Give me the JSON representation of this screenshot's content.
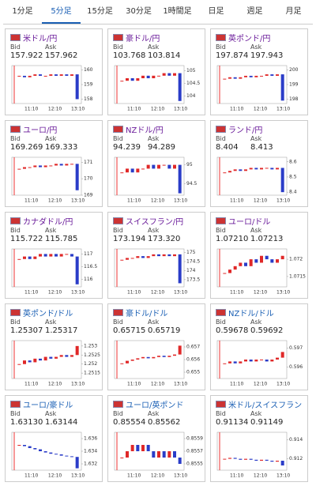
{
  "tabs": [
    "1分足",
    "5分足",
    "15分足",
    "30分足",
    "1時間足",
    "日足",
    "週足",
    "月足"
  ],
  "active_tab": 1,
  "bid_label": "Bid",
  "ask_label": "Ask",
  "xlabels": [
    "11:10",
    "12:10",
    "13:10"
  ],
  "panels": [
    {
      "name": "米ドル/円",
      "visited": true,
      "bid": "157.922",
      "ask": "157.962",
      "ylim": [
        157.7,
        160.3
      ],
      "yticks": [
        160,
        159,
        158
      ],
      "closes": [
        159.6,
        159.5,
        159.6,
        159.7,
        159.6,
        159.6,
        159.7,
        159.6,
        159.7,
        159.6,
        159.7,
        158.0
      ]
    },
    {
      "name": "豪ドル/円",
      "visited": true,
      "bid": "103.768",
      "ask": "103.814",
      "ylim": [
        103.7,
        105.2
      ],
      "yticks": [
        105,
        104.5,
        104
      ],
      "closes": [
        104.6,
        104.7,
        104.6,
        104.7,
        104.8,
        104.7,
        104.8,
        104.8,
        104.9,
        104.8,
        104.9,
        103.8
      ]
    },
    {
      "name": "英ポンド/円",
      "visited": true,
      "bid": "197.874",
      "ask": "197.943",
      "ylim": [
        197.7,
        200.3
      ],
      "yticks": [
        200,
        199,
        198
      ],
      "closes": [
        199.4,
        199.5,
        199.4,
        199.5,
        199.6,
        199.5,
        199.6,
        199.6,
        199.7,
        199.6,
        199.7,
        197.9
      ]
    },
    {
      "name": "ユーロ/円",
      "visited": true,
      "bid": "169.269",
      "ask": "169.333",
      "ylim": [
        169.0,
        171.3
      ],
      "yticks": [
        171,
        170,
        169
      ],
      "closes": [
        170.6,
        170.7,
        170.7,
        170.8,
        170.7,
        170.8,
        170.8,
        170.9,
        170.8,
        170.9,
        170.9,
        169.3
      ]
    },
    {
      "name": "NZドル/円",
      "visited": true,
      "bid": "94.239",
      "ask": "94.289",
      "ylim": [
        94.2,
        95.2
      ],
      "yticks": [
        95,
        94.5
      ],
      "closes": [
        94.8,
        94.9,
        94.8,
        94.9,
        94.9,
        95.0,
        94.9,
        95.0,
        95.0,
        94.9,
        95.0,
        94.25
      ]
    },
    {
      "name": "ランド/円",
      "visited": true,
      "bid": "8.404",
      "ask": "8.413",
      "ylim": [
        8.38,
        8.63
      ],
      "yticks": [
        8.6,
        8.5,
        8.4
      ],
      "closes": [
        8.53,
        8.54,
        8.55,
        8.54,
        8.55,
        8.56,
        8.55,
        8.56,
        8.56,
        8.55,
        8.56,
        8.4
      ]
    },
    {
      "name": "カナダドル/円",
      "visited": true,
      "bid": "115.722",
      "ask": "115.785",
      "ylim": [
        115.7,
        117.2
      ],
      "yticks": [
        117,
        116.5,
        116
      ],
      "closes": [
        116.8,
        116.9,
        116.8,
        116.9,
        117.0,
        116.9,
        117.0,
        116.9,
        117.0,
        117.0,
        116.9,
        115.8
      ]
    },
    {
      "name": "スイスフラン/円",
      "visited": true,
      "bid": "173.194",
      "ask": "173.320",
      "ylim": [
        173.1,
        175.2
      ],
      "yticks": [
        175,
        174.5,
        174,
        173.5
      ],
      "closes": [
        174.6,
        174.7,
        174.7,
        174.8,
        174.7,
        174.8,
        174.9,
        174.8,
        174.9,
        174.8,
        174.9,
        173.3
      ]
    },
    {
      "name": "ユーロ/ドル",
      "visited": true,
      "bid": "1.07210",
      "ask": "1.07213",
      "ylim": [
        1.0712,
        1.0723
      ],
      "yticks": [
        1.072,
        1.0715
      ],
      "closes": [
        1.0716,
        1.0717,
        1.0718,
        1.0719,
        1.0718,
        1.072,
        1.0719,
        1.0721,
        1.072,
        1.0719,
        1.072,
        1.0721
      ]
    },
    {
      "name": "英ポンド/ドル",
      "visited": false,
      "bid": "1.25307",
      "ask": "1.25317",
      "ylim": [
        1.2512,
        1.2533
      ],
      "yticks": [
        1.253,
        1.2525,
        1.252,
        1.2515
      ],
      "closes": [
        1.252,
        1.2522,
        1.2521,
        1.2523,
        1.2522,
        1.2524,
        1.2523,
        1.2524,
        1.2525,
        1.2524,
        1.2525,
        1.253
      ]
    },
    {
      "name": "豪ドル/ドル",
      "visited": false,
      "bid": "0.65715",
      "ask": "0.65719",
      "ylim": [
        0.6545,
        0.6575
      ],
      "yticks": [
        0.657,
        0.656,
        0.655
      ],
      "closes": [
        0.6557,
        0.6559,
        0.656,
        0.6561,
        0.6562,
        0.6561,
        0.6562,
        0.6563,
        0.6562,
        0.6563,
        0.6564,
        0.6571
      ]
    },
    {
      "name": "NZドル/ドル",
      "visited": false,
      "bid": "0.59678",
      "ask": "0.59692",
      "ylim": [
        0.5954,
        0.5974
      ],
      "yticks": [
        0.597,
        0.596
      ],
      "closes": [
        0.5962,
        0.5963,
        0.5962,
        0.5963,
        0.5964,
        0.5963,
        0.5964,
        0.5964,
        0.5963,
        0.5964,
        0.5965,
        0.5968
      ]
    },
    {
      "name": "ユーロ/豪ドル",
      "visited": false,
      "bid": "1.63130",
      "ask": "1.63144",
      "ylim": [
        1.631,
        1.637
      ],
      "yticks": [
        1.636,
        1.634,
        1.632
      ],
      "closes": [
        1.635,
        1.6348,
        1.6345,
        1.6343,
        1.634,
        1.6338,
        1.6336,
        1.6335,
        1.6333,
        1.6332,
        1.6331,
        1.6313
      ]
    },
    {
      "name": "ユーロ/英ポンド",
      "visited": false,
      "bid": "0.85554",
      "ask": "0.85562",
      "ylim": [
        0.8554,
        0.856
      ],
      "yticks": [
        0.8559,
        0.8557,
        0.8555
      ],
      "closes": [
        0.8556,
        0.8557,
        0.8558,
        0.8557,
        0.8558,
        0.8557,
        0.8556,
        0.8557,
        0.8556,
        0.8557,
        0.8556,
        0.8555
      ]
    },
    {
      "name": "米ドル/スイスフラン",
      "visited": false,
      "bid": "0.91134",
      "ask": "0.91149",
      "ylim": [
        0.9108,
        0.9148
      ],
      "yticks": [
        0.914,
        0.912
      ],
      "closes": [
        0.912,
        0.9121,
        0.912,
        0.9119,
        0.912,
        0.9119,
        0.9118,
        0.9119,
        0.9118,
        0.9117,
        0.9118,
        0.9113
      ]
    }
  ]
}
